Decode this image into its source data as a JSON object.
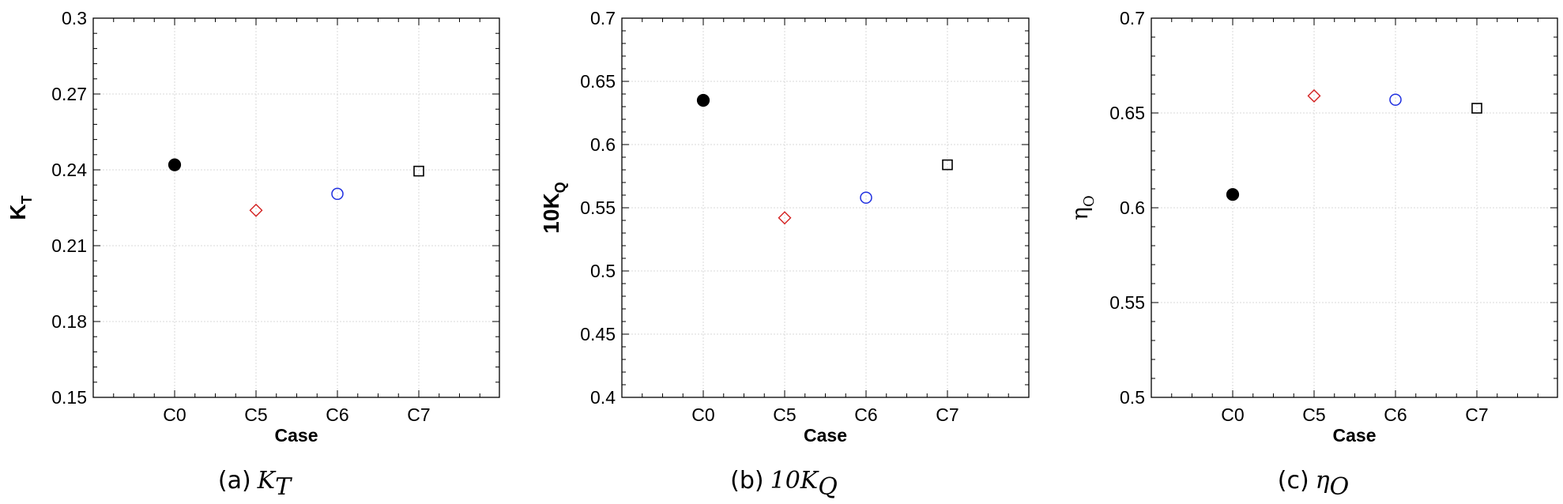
{
  "chart_data": [
    {
      "type": "scatter",
      "xlabel": "Case",
      "ylabel": {
        "main": "K",
        "sub": "T"
      },
      "caption": {
        "prefix": "(a)",
        "math_main": "K",
        "math_sub": "T"
      },
      "categories": [
        "C0",
        "C5",
        "C6",
        "C7"
      ],
      "ylim": [
        0.15,
        0.3
      ],
      "yticks": [
        0.15,
        0.18,
        0.21,
        0.24,
        0.27,
        0.3
      ],
      "ytick_labels": [
        "0.15",
        "0.18",
        "0.21",
        "0.24",
        "0.27",
        "0.3"
      ],
      "grid": true,
      "points": [
        {
          "category": "C0",
          "y": 0.242,
          "marker": "filled-circle",
          "color": "#000000"
        },
        {
          "category": "C5",
          "y": 0.224,
          "marker": "diamond",
          "color": "#d42020"
        },
        {
          "category": "C6",
          "y": 0.2305,
          "marker": "circle",
          "color": "#1f2fe0"
        },
        {
          "category": "C7",
          "y": 0.2395,
          "marker": "square",
          "color": "#000000"
        }
      ]
    },
    {
      "type": "scatter",
      "xlabel": "Case",
      "ylabel": {
        "main": "10K",
        "sub": "Q"
      },
      "caption": {
        "prefix": "(b)",
        "math_main": "10K",
        "math_sub": "Q"
      },
      "categories": [
        "C0",
        "C5",
        "C6",
        "C7"
      ],
      "ylim": [
        0.4,
        0.7
      ],
      "yticks": [
        0.4,
        0.45,
        0.5,
        0.55,
        0.6,
        0.65,
        0.7
      ],
      "ytick_labels": [
        "0.4",
        "0.45",
        "0.5",
        "0.55",
        "0.6",
        "0.65",
        "0.7"
      ],
      "grid": true,
      "points": [
        {
          "category": "C0",
          "y": 0.635,
          "marker": "filled-circle",
          "color": "#000000"
        },
        {
          "category": "C5",
          "y": 0.542,
          "marker": "diamond",
          "color": "#d42020"
        },
        {
          "category": "C6",
          "y": 0.558,
          "marker": "circle",
          "color": "#1f2fe0"
        },
        {
          "category": "C7",
          "y": 0.584,
          "marker": "square",
          "color": "#000000"
        }
      ]
    },
    {
      "type": "scatter",
      "xlabel": "Case",
      "ylabel": {
        "main": "η",
        "sub": "O"
      },
      "caption": {
        "prefix": "(c)",
        "math_main": "η",
        "math_sub": "O"
      },
      "categories": [
        "C0",
        "C5",
        "C6",
        "C7"
      ],
      "ylim": [
        0.5,
        0.7
      ],
      "yticks": [
        0.5,
        0.55,
        0.6,
        0.65,
        0.7
      ],
      "ytick_labels": [
        "0.5",
        "0.55",
        "0.6",
        "0.65",
        "0.7"
      ],
      "grid": true,
      "points": [
        {
          "category": "C0",
          "y": 0.607,
          "marker": "filled-circle",
          "color": "#000000"
        },
        {
          "category": "C5",
          "y": 0.659,
          "marker": "diamond",
          "color": "#d42020"
        },
        {
          "category": "C6",
          "y": 0.657,
          "marker": "circle",
          "color": "#1f2fe0"
        },
        {
          "category": "C7",
          "y": 0.6525,
          "marker": "square",
          "color": "#000000"
        }
      ]
    }
  ]
}
